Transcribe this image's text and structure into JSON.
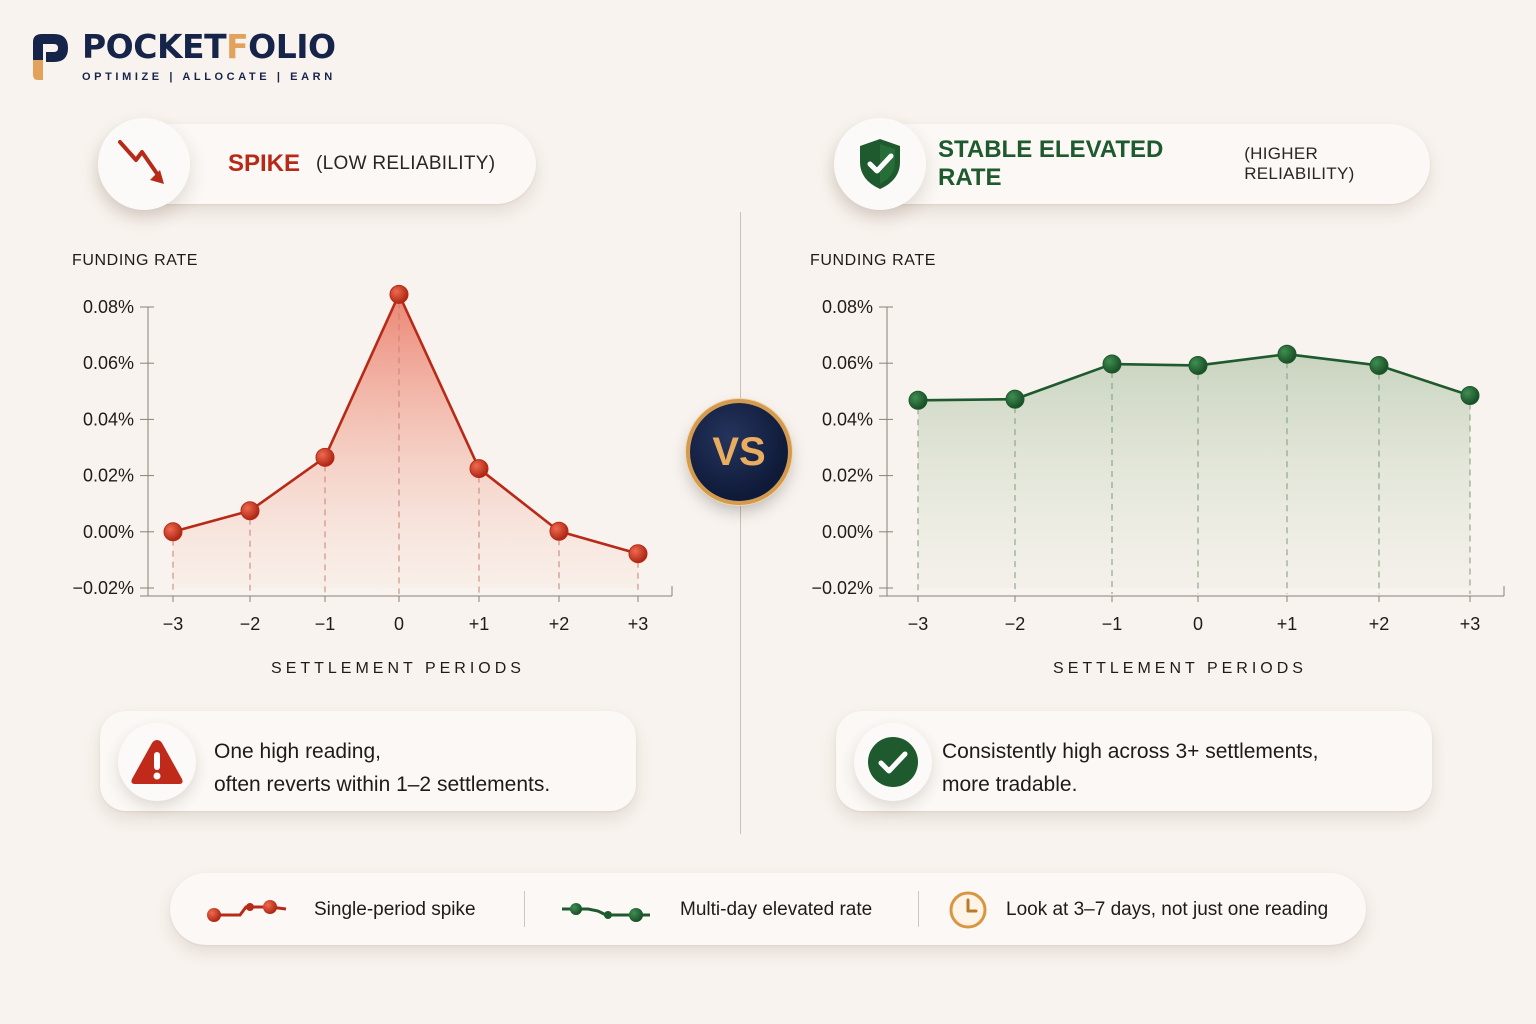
{
  "brand": {
    "name_part1": "POCKET",
    "name_accent": "F",
    "name_part2": "OLIO",
    "tagline": "OPTIMIZE  |  ALLOCATE  |  EARN"
  },
  "left_panel": {
    "title": "SPIKE",
    "subtitle": "(LOW RELIABILITY)",
    "icon": "trend-down-arrow-icon",
    "note_line1": "One high reading,",
    "note_line2": "often reverts within 1–2 settlements.",
    "note_icon": "warning-triangle-icon"
  },
  "right_panel": {
    "title": "STABLE ELEVATED RATE",
    "subtitle": "(HIGHER RELIABILITY)",
    "icon": "shield-check-icon",
    "note_line1": "Consistently high across 3+ settlements,",
    "note_line2": "more tradable.",
    "note_icon": "check-circle-icon"
  },
  "vs_label": "VS",
  "legend": {
    "item1": "Single-period spike",
    "item2": "Multi-day elevated rate",
    "item3": "Look at 3–7 days, not just one reading",
    "item3_icon": "clock-icon"
  },
  "colors": {
    "spike": "#b82a18",
    "stable": "#1e5a2e",
    "navy": "#17244a",
    "gold": "#e3a25c"
  },
  "chart_data": [
    {
      "type": "line",
      "ylabel": "FUNDING RATE",
      "xlabel": "SETTLEMENT PERIODS",
      "categories": [
        "−3",
        "−2",
        "−1",
        "0",
        "+1",
        "+2",
        "+3"
      ],
      "y_ticks": [
        "0.08%",
        "0.06%",
        "0.04%",
        "0.02%",
        "0.00%",
        "−0.02%"
      ],
      "ylim": [
        -0.02,
        0.08
      ],
      "area_fill": true,
      "series": [
        {
          "values": [
            0.0,
            0.0075,
            0.0265,
            0.0845,
            0.0225,
            0.0002,
            -0.0078
          ]
        }
      ]
    },
    {
      "type": "line",
      "ylabel": "FUNDING RATE",
      "xlabel": "SETTLEMENT PERIODS",
      "categories": [
        "−3",
        "−2",
        "−1",
        "0",
        "+1",
        "+2",
        "+3"
      ],
      "y_ticks": [
        "0.08%",
        "0.06%",
        "0.04%",
        "0.02%",
        "0.00%",
        "−0.02%"
      ],
      "ylim": [
        -0.02,
        0.08
      ],
      "area_fill": true,
      "series": [
        {
          "values": [
            0.0468,
            0.0472,
            0.0597,
            0.0592,
            0.0632,
            0.0592,
            0.0485
          ]
        }
      ]
    }
  ]
}
